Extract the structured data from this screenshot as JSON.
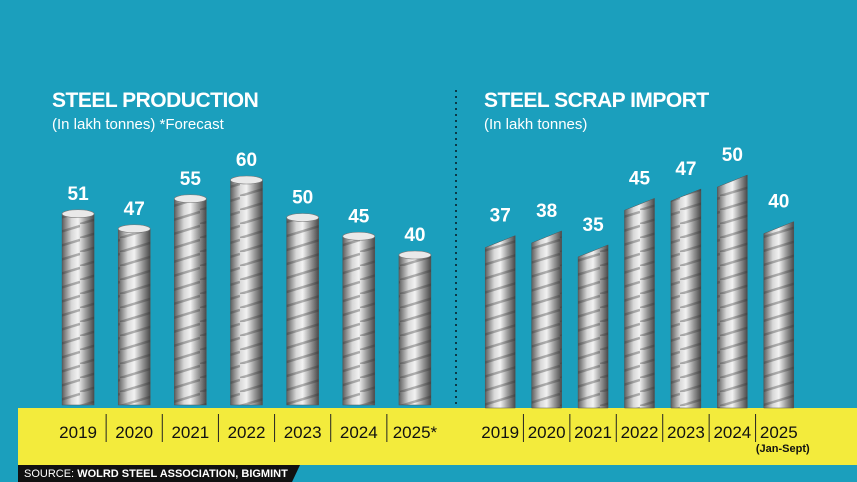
{
  "chart_data": [
    {
      "type": "bar",
      "style": "cylinder",
      "title": "STEEL PRODUCTION",
      "subtitle": "(In lakh tonnes) *Forecast",
      "categories": [
        "2019",
        "2020",
        "2021",
        "2022",
        "2023",
        "2024",
        "2025*"
      ],
      "values": [
        51,
        47,
        55,
        60,
        50,
        45,
        40
      ]
    },
    {
      "type": "bar",
      "style": "slanted",
      "title": "STEEL SCRAP IMPORT",
      "subtitle": "(In lakh tonnes)",
      "categories": [
        "2019",
        "2020",
        "2021",
        "2022",
        "2023",
        "2024",
        "2025"
      ],
      "values": [
        37,
        38,
        35,
        45,
        47,
        50,
        40
      ],
      "annotation": "(Jan-Sept)"
    }
  ],
  "source": {
    "label": "SOURCE:",
    "text": "WOLRD STEEL ASSOCIATION, BIGMINT"
  }
}
